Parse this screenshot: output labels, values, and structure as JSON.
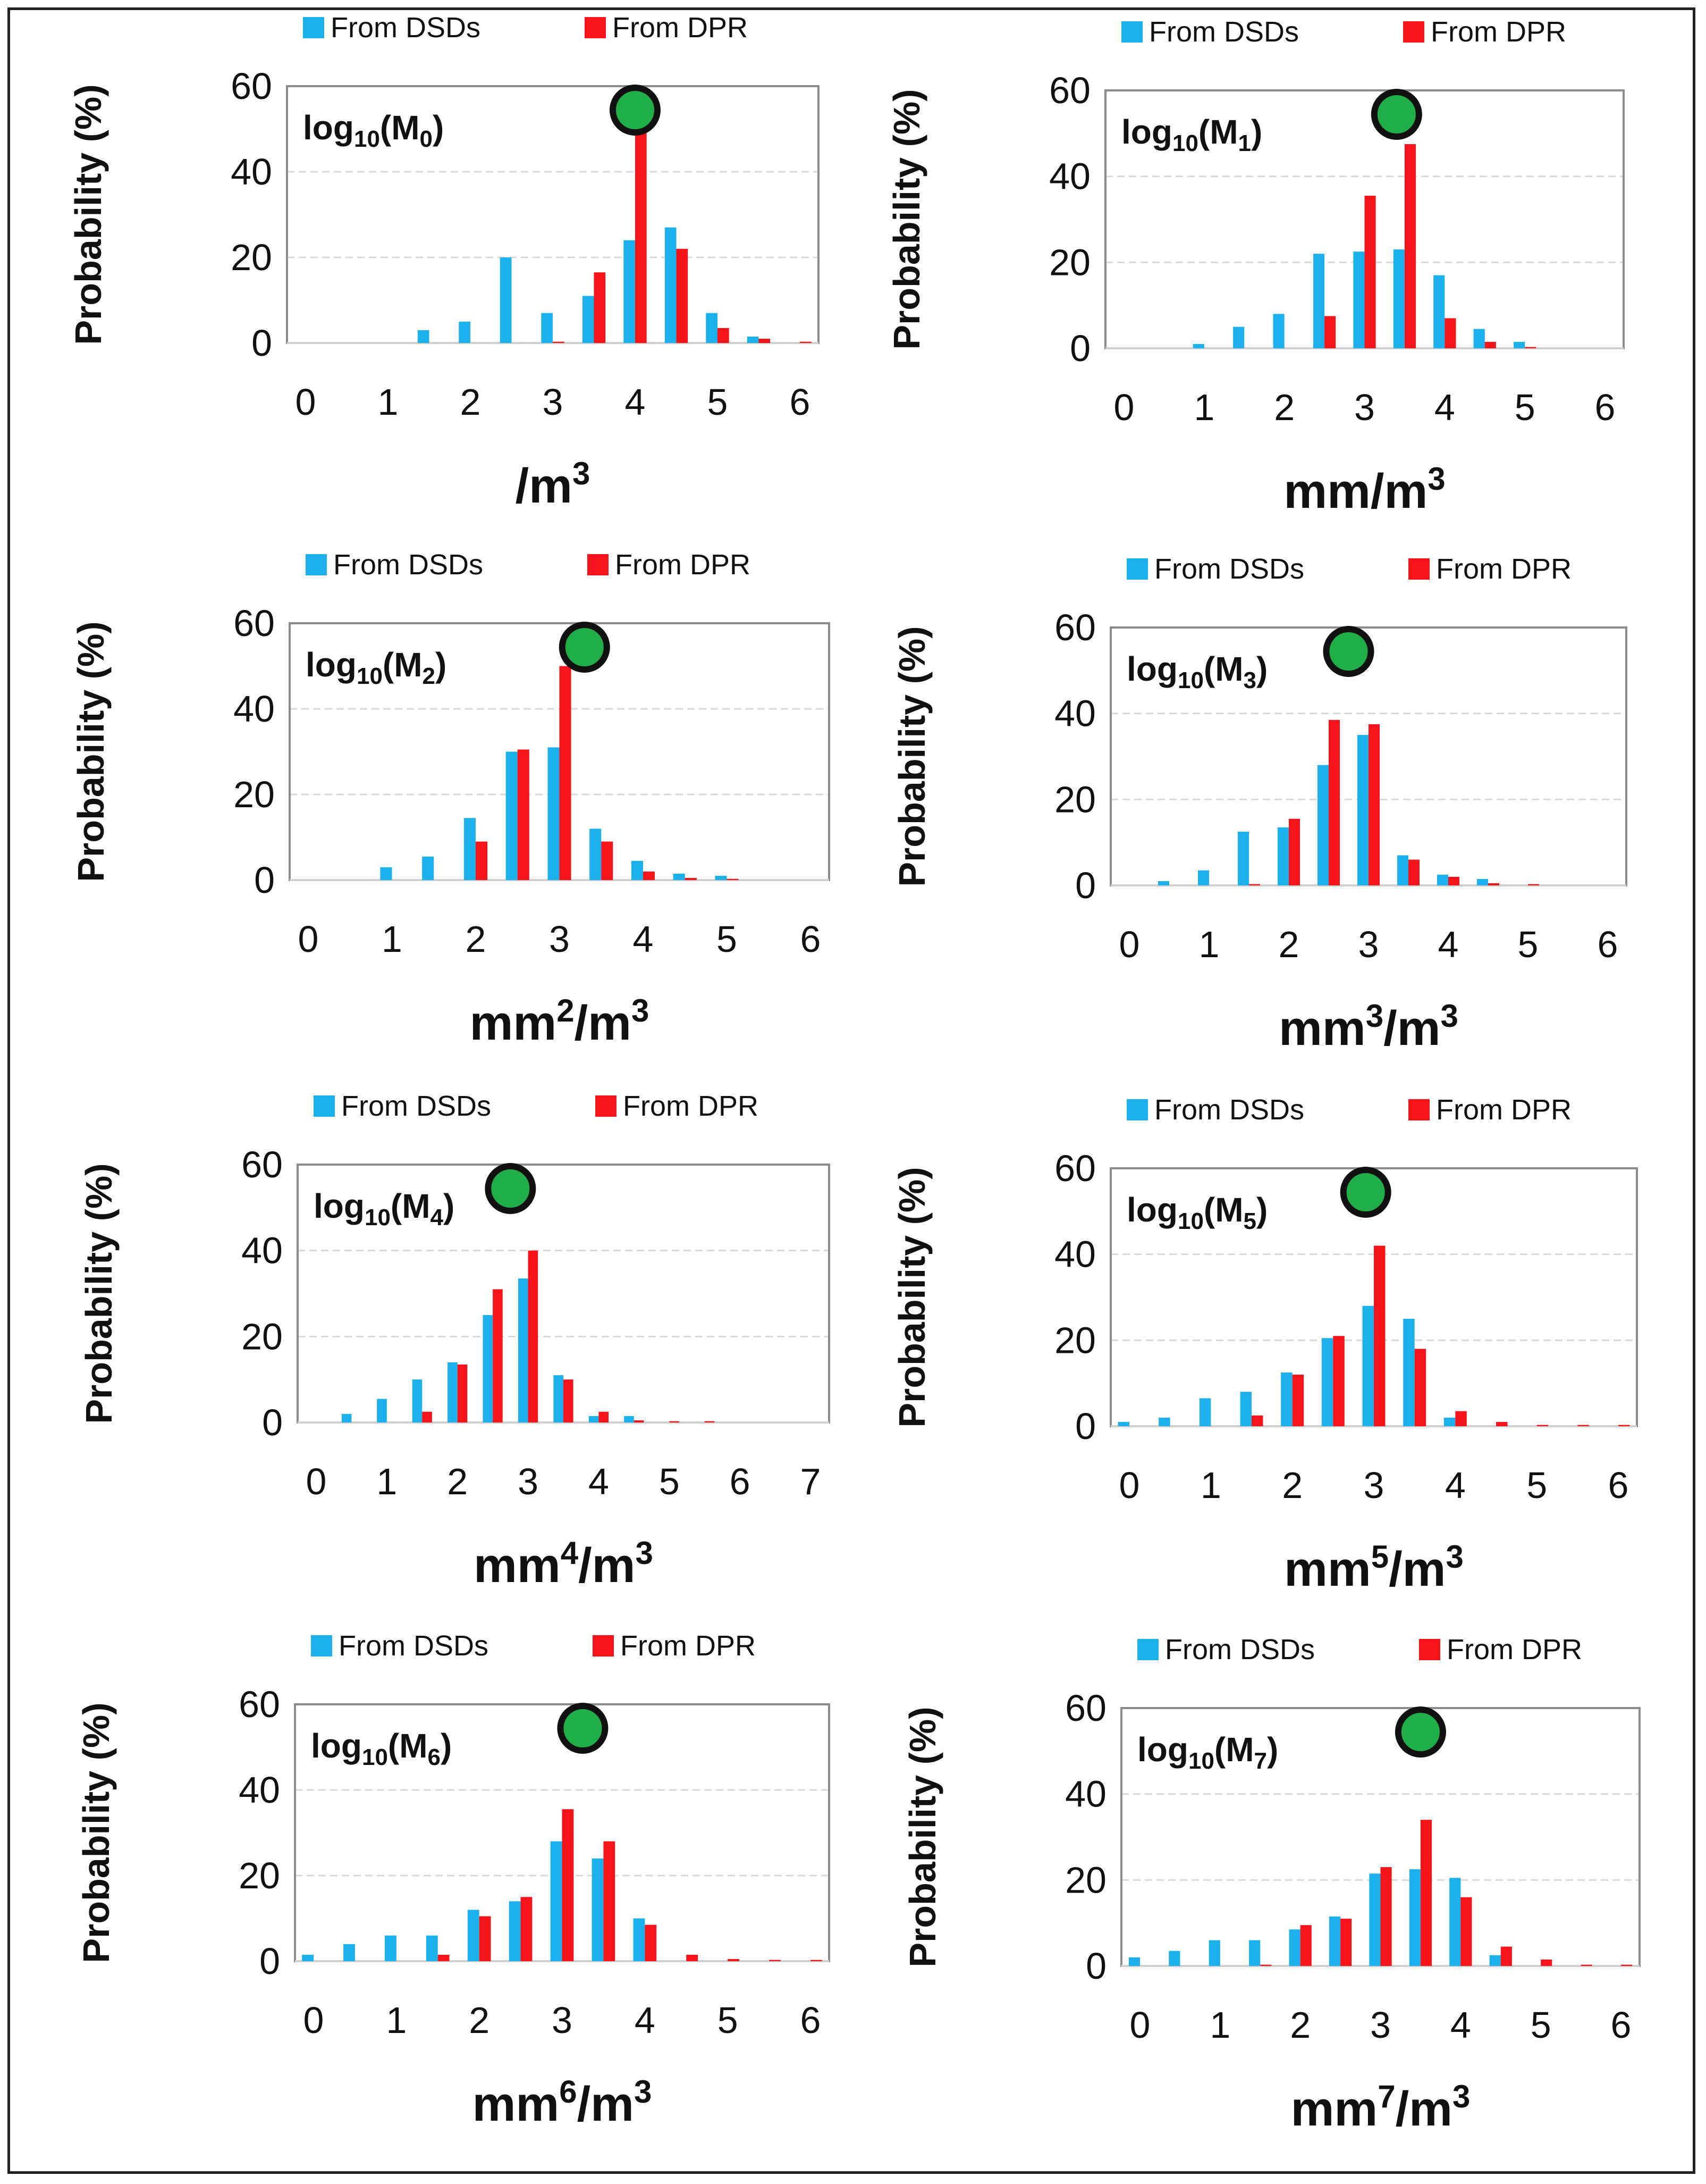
{
  "figure": {
    "title": ""
  },
  "colors": {
    "dsd": "#1CB0EC",
    "dpr": "#F4141A",
    "marker": "#1FAE48",
    "grid": "#D9D9D9",
    "frame": "#222222"
  },
  "legend": {
    "dsd_label": "From DSDs",
    "dpr_label": "From DPR"
  },
  "chart_data": [
    {
      "type": "bar",
      "panel_label": "log10(M0)",
      "moment_subscript": "0",
      "title": "",
      "xlabel": "/m3",
      "xlabel_base": "/m",
      "xlabel_exp": "",
      "ylabel": "Probability (%)",
      "ylim": [
        0,
        60
      ],
      "yticks": [
        0,
        20,
        40,
        60
      ],
      "xlim": [
        0,
        6
      ],
      "xticks": [
        0,
        1,
        2,
        3,
        4,
        5,
        6
      ],
      "grid": true,
      "legend_position": "top",
      "marker_x": 4.0,
      "series": [
        {
          "name": "From DSDs",
          "x": [
            0,
            0.5,
            1,
            1.5,
            2,
            2.5,
            3,
            3.5,
            4,
            4.5,
            5,
            5.5,
            6
          ],
          "values": [
            0,
            0,
            0,
            3,
            5,
            20,
            7,
            11,
            24,
            27,
            7,
            1.5,
            0
          ]
        },
        {
          "name": "From DPR",
          "x": [
            0,
            0.5,
            1,
            1.5,
            2,
            2.5,
            3,
            3.5,
            4,
            4.5,
            5,
            5.5,
            6
          ],
          "values": [
            0,
            0,
            0,
            0,
            0,
            0,
            0.3,
            16.5,
            54,
            22,
            3.5,
            1,
            0.3
          ]
        }
      ]
    },
    {
      "type": "bar",
      "panel_label": "log10(M1)",
      "moment_subscript": "1",
      "title": "",
      "xlabel": "mm/m3",
      "xlabel_base": "mm",
      "xlabel_exp": "",
      "ylabel": "Probability (%)",
      "ylim": [
        0,
        60
      ],
      "yticks": [
        0,
        20,
        40,
        60
      ],
      "xlim": [
        0,
        6
      ],
      "xticks": [
        0,
        1,
        2,
        3,
        4,
        5,
        6
      ],
      "grid": true,
      "legend_position": "top",
      "marker_x": 3.4,
      "series": [
        {
          "name": "From DSDs",
          "x": [
            0,
            0.5,
            1,
            1.5,
            2,
            2.5,
            3,
            3.5,
            4,
            4.5,
            5,
            5.5,
            6
          ],
          "values": [
            0,
            0,
            1,
            5,
            8,
            22,
            22.5,
            23,
            17,
            4.5,
            1.5,
            0,
            0
          ]
        },
        {
          "name": "From DPR",
          "x": [
            0,
            0.5,
            1,
            1.5,
            2,
            2.5,
            3,
            3.5,
            4,
            4.5,
            5,
            5.5,
            6
          ],
          "values": [
            0,
            0,
            0,
            0,
            0,
            7.5,
            35.5,
            47.5,
            7,
            1.5,
            0.3,
            0,
            0
          ]
        }
      ]
    },
    {
      "type": "bar",
      "panel_label": "log10(M2)",
      "moment_subscript": "2",
      "title": "",
      "xlabel": "mm2/m3",
      "xlabel_base": "mm",
      "xlabel_exp": "2",
      "ylabel": "Probability (%)",
      "ylim": [
        0,
        60
      ],
      "yticks": [
        0,
        20,
        40,
        60
      ],
      "xlim": [
        0,
        6
      ],
      "xticks": [
        0,
        1,
        2,
        3,
        4,
        5,
        6
      ],
      "grid": true,
      "legend_position": "top",
      "marker_x": 3.3,
      "series": [
        {
          "name": "From DSDs",
          "x": [
            0,
            0.5,
            1,
            1.5,
            2,
            2.5,
            3,
            3.5,
            4,
            4.5,
            5,
            5.5,
            6
          ],
          "values": [
            0,
            0,
            3,
            5.5,
            14.5,
            30,
            31,
            12,
            4.5,
            1.5,
            1,
            0,
            0
          ]
        },
        {
          "name": "From DPR",
          "x": [
            0,
            0.5,
            1,
            1.5,
            2,
            2.5,
            3,
            3.5,
            4,
            4.5,
            5,
            5.5,
            6
          ],
          "values": [
            0,
            0,
            0,
            0,
            9,
            30.5,
            50,
            9,
            2,
            0.5,
            0.3,
            0,
            0
          ]
        }
      ]
    },
    {
      "type": "bar",
      "panel_label": "log10(M3)",
      "moment_subscript": "3",
      "title": "",
      "xlabel": "mm3/m3",
      "xlabel_base": "mm",
      "xlabel_exp": "3",
      "ylabel": "Probability (%)",
      "ylim": [
        0,
        60
      ],
      "yticks": [
        0,
        20,
        40,
        60
      ],
      "xlim": [
        0,
        6
      ],
      "xticks": [
        0,
        1,
        2,
        3,
        4,
        5,
        6
      ],
      "grid": true,
      "legend_position": "top",
      "marker_x": 2.75,
      "series": [
        {
          "name": "From DSDs",
          "x": [
            0,
            0.5,
            1,
            1.5,
            2,
            2.5,
            3,
            3.5,
            4,
            4.5,
            5,
            5.5,
            6
          ],
          "values": [
            0,
            1,
            3.5,
            12.5,
            13.5,
            28,
            35,
            7,
            2.5,
            1.5,
            0,
            0,
            0
          ]
        },
        {
          "name": "From DPR",
          "x": [
            0,
            0.5,
            1,
            1.5,
            2,
            2.5,
            3,
            3.5,
            4,
            4.5,
            5,
            5.5,
            6
          ],
          "values": [
            0,
            0,
            0,
            0.3,
            15.5,
            38.5,
            37.5,
            6,
            2,
            0.5,
            0.3,
            0,
            0
          ]
        }
      ]
    },
    {
      "type": "bar",
      "panel_label": "log10(M4)",
      "moment_subscript": "4",
      "title": "",
      "xlabel": "mm4/m3",
      "xlabel_base": "mm",
      "xlabel_exp": "4",
      "ylabel": "Probability (%)",
      "ylim": [
        0,
        60
      ],
      "yticks": [
        0,
        20,
        40,
        60
      ],
      "xlim": [
        0,
        7
      ],
      "xticks": [
        0,
        1,
        2,
        3,
        4,
        5,
        6,
        7
      ],
      "grid": true,
      "legend_position": "top",
      "marker_x": 2.75,
      "series": [
        {
          "name": "From DSDs",
          "x": [
            0,
            0.5,
            1,
            1.5,
            2,
            2.5,
            3,
            3.5,
            4,
            4.5,
            5,
            5.5,
            6,
            6.5,
            7
          ],
          "values": [
            0,
            2,
            5.5,
            10,
            14,
            25,
            33.5,
            11,
            1.5,
            1.5,
            0,
            0,
            0,
            0,
            0
          ]
        },
        {
          "name": "From DPR",
          "x": [
            0,
            0.5,
            1,
            1.5,
            2,
            2.5,
            3,
            3.5,
            4,
            4.5,
            5,
            5.5,
            6,
            6.5,
            7
          ],
          "values": [
            0,
            0,
            0,
            2.5,
            13.5,
            31,
            40,
            10,
            2.5,
            0.5,
            0.3,
            0.3,
            0,
            0,
            0
          ]
        }
      ]
    },
    {
      "type": "bar",
      "panel_label": "log10(M5)",
      "moment_subscript": "5",
      "title": "",
      "xlabel": "mm5/m3",
      "xlabel_base": "mm",
      "xlabel_exp": "5",
      "ylabel": "Probability (%)",
      "ylim": [
        0,
        60
      ],
      "yticks": [
        0,
        20,
        40,
        60
      ],
      "xlim": [
        0,
        6
      ],
      "xticks": [
        0,
        1,
        2,
        3,
        4,
        5,
        6
      ],
      "grid": true,
      "legend_position": "top",
      "marker_x": 2.9,
      "series": [
        {
          "name": "From DSDs",
          "x": [
            0,
            0.5,
            1,
            1.5,
            2,
            2.5,
            3,
            3.5,
            4,
            4.5,
            5,
            5.5,
            6
          ],
          "values": [
            1,
            2,
            6.5,
            8,
            12.5,
            20.5,
            28,
            25,
            2,
            0,
            0,
            0,
            0
          ]
        },
        {
          "name": "From DPR",
          "x": [
            0,
            0.5,
            1,
            1.5,
            2,
            2.5,
            3,
            3.5,
            4,
            4.5,
            5,
            5.5,
            6
          ],
          "values": [
            0,
            0,
            0,
            2.5,
            12,
            21,
            42,
            18,
            3.5,
            1,
            0.3,
            0.3,
            0.3
          ]
        }
      ]
    },
    {
      "type": "bar",
      "panel_label": "log10(M6)",
      "moment_subscript": "6",
      "title": "",
      "xlabel": "mm6/m3",
      "xlabel_base": "mm",
      "xlabel_exp": "6",
      "ylabel": "Probability (%)",
      "ylim": [
        0,
        60
      ],
      "yticks": [
        0,
        20,
        40,
        60
      ],
      "xlim": [
        0,
        6
      ],
      "xticks": [
        0,
        1,
        2,
        3,
        4,
        5,
        6
      ],
      "grid": true,
      "legend_position": "top",
      "marker_x": 3.25,
      "series": [
        {
          "name": "From DSDs",
          "x": [
            0,
            0.5,
            1,
            1.5,
            2,
            2.5,
            3,
            3.5,
            4,
            4.5,
            5,
            5.5,
            6
          ],
          "values": [
            1.5,
            4,
            6,
            6,
            12,
            14,
            28,
            24,
            10,
            0,
            0,
            0,
            0
          ]
        },
        {
          "name": "From DPR",
          "x": [
            0,
            0.5,
            1,
            1.5,
            2,
            2.5,
            3,
            3.5,
            4,
            4.5,
            5,
            5.5,
            6
          ],
          "values": [
            0,
            0,
            0,
            1.5,
            10.5,
            15,
            35.5,
            28,
            8.5,
            1.5,
            0.5,
            0.3,
            0.3
          ]
        }
      ]
    },
    {
      "type": "bar",
      "panel_label": "log10(M7)",
      "moment_subscript": "7",
      "title": "",
      "xlabel": "mm7/m3",
      "xlabel_base": "mm",
      "xlabel_exp": "7",
      "ylabel": "Probability (%)",
      "ylim": [
        0,
        60
      ],
      "yticks": [
        0,
        20,
        40,
        60
      ],
      "xlim": [
        0,
        6
      ],
      "xticks": [
        0,
        1,
        2,
        3,
        4,
        5,
        6
      ],
      "grid": true,
      "legend_position": "top",
      "marker_x": 3.5,
      "series": [
        {
          "name": "From DSDs",
          "x": [
            0,
            0.5,
            1,
            1.5,
            2,
            2.5,
            3,
            3.5,
            4,
            4.5,
            5,
            5.5,
            6
          ],
          "values": [
            2,
            3.5,
            6,
            6,
            8.5,
            11.5,
            21.5,
            22.5,
            20.5,
            2.5,
            0,
            0,
            0
          ]
        },
        {
          "name": "From DPR",
          "x": [
            0,
            0.5,
            1,
            1.5,
            2,
            2.5,
            3,
            3.5,
            4,
            4.5,
            5,
            5.5,
            6
          ],
          "values": [
            0,
            0,
            0,
            0.3,
            9.5,
            11,
            23,
            34,
            16,
            4.5,
            1.5,
            0.3,
            0.3
          ]
        }
      ]
    }
  ]
}
